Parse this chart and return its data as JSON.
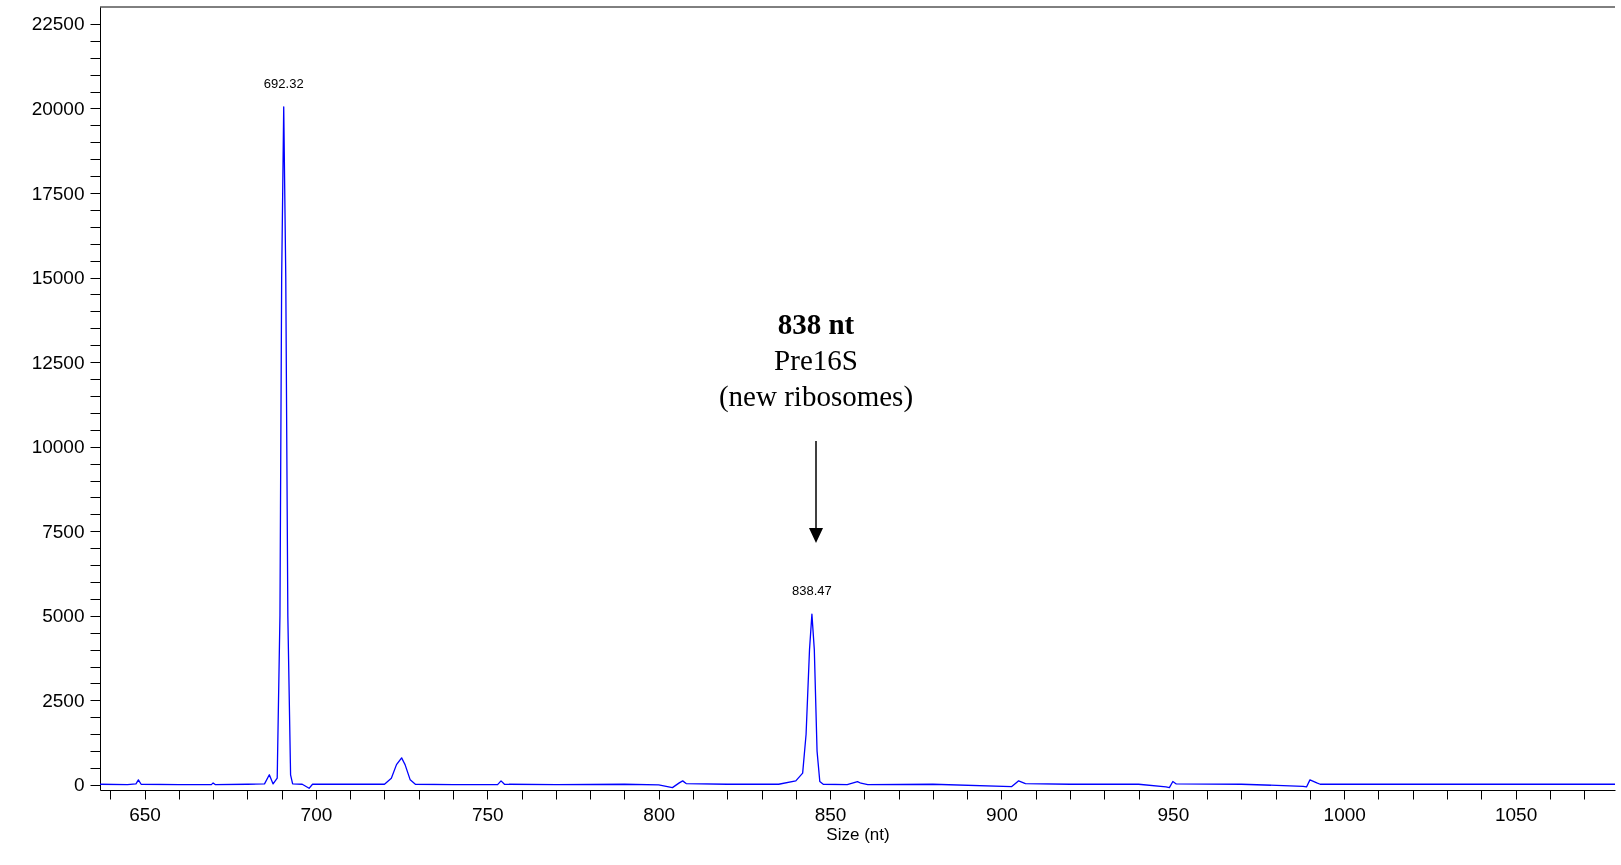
{
  "chart_data": {
    "type": "line",
    "xlabel": "Size (nt)",
    "x": [
      637,
      645,
      647.5,
      648.2,
      649,
      660,
      669.5,
      670,
      670.6,
      680,
      685,
      686.4,
      687.5,
      688.7,
      689.5,
      690,
      690.6,
      691.2,
      691.8,
      692.6,
      693.2,
      696,
      698,
      699,
      710,
      720,
      722,
      723.5,
      725,
      726,
      727.5,
      729,
      740,
      753,
      754,
      755,
      770,
      790,
      800,
      804,
      806,
      807,
      808,
      820,
      835,
      840,
      842,
      843,
      844,
      844.7,
      845.4,
      846.2,
      847,
      848,
      855,
      858,
      859,
      861,
      880,
      903,
      905,
      907,
      920,
      940,
      948,
      949,
      950,
      951,
      970,
      988,
      989,
      990,
      992,
      993,
      1010,
      1030,
      1050,
      1079
    ],
    "series": [
      {
        "color": "#0000ff",
        "values": [
          20,
          10,
          30,
          150,
          20,
          10,
          10,
          60,
          10,
          20,
          30,
          300,
          30,
          200,
          5000,
          15000,
          20050,
          15000,
          5000,
          300,
          30,
          20,
          -100,
          20,
          20,
          20,
          200,
          600,
          800,
          600,
          150,
          20,
          10,
          10,
          120,
          20,
          10,
          20,
          0,
          -80,
          60,
          120,
          40,
          20,
          20,
          120,
          350,
          1500,
          4000,
          5050,
          4000,
          1000,
          100,
          20,
          10,
          100,
          50,
          10,
          20,
          -50,
          120,
          40,
          20,
          20,
          -60,
          -80,
          100,
          30,
          20,
          -40,
          -60,
          150,
          60,
          20,
          20,
          20,
          20,
          20
        ]
      }
    ],
    "xlim": [
      637,
      1079
    ],
    "ylim": [
      -150,
      23000
    ],
    "xticks": [
      {
        "value": 640,
        "label": null
      },
      650,
      {
        "value": 660,
        "label": null
      },
      {
        "value": 670,
        "label": null
      },
      {
        "value": 680,
        "label": null
      },
      {
        "value": 690,
        "label": null
      },
      700,
      {
        "value": 710,
        "label": null
      },
      {
        "value": 720,
        "label": null
      },
      {
        "value": 730,
        "label": null
      },
      {
        "value": 740,
        "label": null
      },
      750,
      {
        "value": 760,
        "label": null
      },
      {
        "value": 770,
        "label": null
      },
      {
        "value": 780,
        "label": null
      },
      {
        "value": 790,
        "label": null
      },
      800,
      {
        "value": 810,
        "label": null
      },
      {
        "value": 820,
        "label": null
      },
      {
        "value": 830,
        "label": null
      },
      {
        "value": 840,
        "label": null
      },
      850,
      {
        "value": 860,
        "label": null
      },
      {
        "value": 870,
        "label": null
      },
      {
        "value": 880,
        "label": null
      },
      {
        "value": 890,
        "label": null
      },
      900,
      {
        "value": 910,
        "label": null
      },
      {
        "value": 920,
        "label": null
      },
      {
        "value": 930,
        "label": null
      },
      {
        "value": 940,
        "label": null
      },
      950,
      {
        "value": 960,
        "label": null
      },
      {
        "value": 970,
        "label": null
      },
      {
        "value": 980,
        "label": null
      },
      {
        "value": 990,
        "label": null
      },
      1000,
      {
        "value": 1010,
        "label": null
      },
      {
        "value": 1020,
        "label": null
      },
      {
        "value": 1030,
        "label": null
      },
      {
        "value": 1040,
        "label": null
      },
      1050,
      {
        "value": 1060,
        "label": null
      },
      {
        "value": 1070,
        "label": null
      }
    ],
    "yticks": [
      0,
      {
        "value": 500,
        "label": null
      },
      {
        "value": 1000,
        "label": null
      },
      {
        "value": 1500,
        "label": null
      },
      {
        "value": 2000,
        "label": null
      },
      2500,
      {
        "value": 3000,
        "label": null
      },
      {
        "value": 3500,
        "label": null
      },
      {
        "value": 4000,
        "label": null
      },
      {
        "value": 4500,
        "label": null
      },
      5000,
      {
        "value": 5500,
        "label": null
      },
      {
        "value": 6000,
        "label": null
      },
      {
        "value": 6500,
        "label": null
      },
      {
        "value": 7000,
        "label": null
      },
      7500,
      {
        "value": 8000,
        "label": null
      },
      {
        "value": 8500,
        "label": null
      },
      {
        "value": 9000,
        "label": null
      },
      {
        "value": 9500,
        "label": null
      },
      10000,
      {
        "value": 10500,
        "label": null
      },
      {
        "value": 11000,
        "label": null
      },
      {
        "value": 11500,
        "label": null
      },
      {
        "value": 12000,
        "label": null
      },
      12500,
      {
        "value": 13000,
        "label": null
      },
      {
        "value": 13500,
        "label": null
      },
      {
        "value": 14000,
        "label": null
      },
      {
        "value": 14500,
        "label": null
      },
      15000,
      {
        "value": 15500,
        "label": null
      },
      {
        "value": 16000,
        "label": null
      },
      {
        "value": 16500,
        "label": null
      },
      {
        "value": 17000,
        "label": null
      },
      17500,
      {
        "value": 18000,
        "label": null
      },
      {
        "value": 18500,
        "label": null
      },
      {
        "value": 19000,
        "label": null
      },
      {
        "value": 19500,
        "label": null
      },
      20000,
      {
        "value": 20500,
        "label": null
      },
      {
        "value": 21000,
        "label": null
      },
      {
        "value": 21500,
        "label": null
      },
      {
        "value": 22000,
        "label": null
      },
      22500
    ],
    "annotations": [
      {
        "text": "692.32",
        "x": 690.6,
        "y": 20050
      },
      {
        "text": "838.47",
        "x": 844.7,
        "y": 5050
      },
      "838 nt\nPre16S\n(new ribosomes)"
    ]
  }
}
